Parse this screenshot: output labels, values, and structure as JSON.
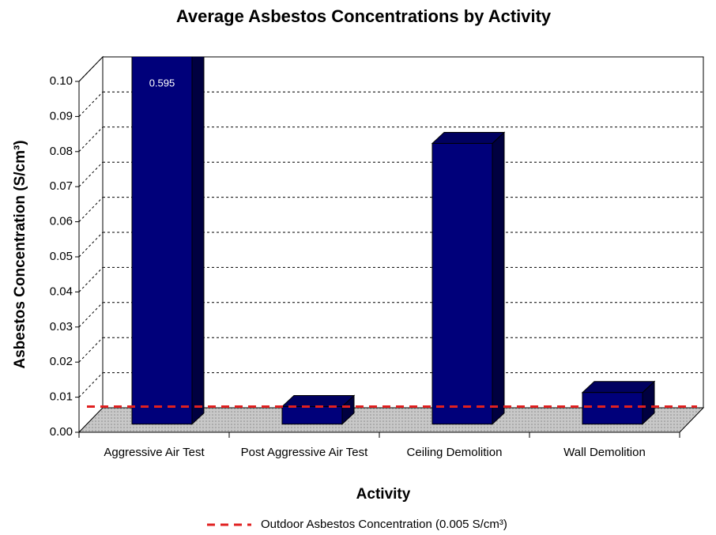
{
  "chart_data": {
    "type": "bar3d",
    "title": "Average Asbestos Concentrations by Activity",
    "x_label": "Activity",
    "y_label": "Asbestos Concentration (S/cm³)",
    "categories": [
      "Aggressive Air Test",
      "Post Aggressive Air Test",
      "Ceiling Demolition",
      "Wall Demolition"
    ],
    "values": [
      0.595,
      0.005,
      0.08,
      0.009
    ],
    "value_labels": [
      "0.595",
      null,
      null,
      null
    ],
    "color": "#00007a",
    "ylim": [
      0,
      0.1
    ],
    "yticks": [
      {
        "value": 0,
        "label": "0.00"
      },
      {
        "value": 0.01,
        "label": "0.01"
      },
      {
        "value": 0.02,
        "label": "0.02"
      },
      {
        "value": 0.03,
        "label": "0.03"
      },
      {
        "value": 0.04,
        "label": "0.04"
      },
      {
        "value": 0.05,
        "label": "0.05"
      },
      {
        "value": 0.06,
        "label": "0.06"
      },
      {
        "value": 0.07,
        "label": "0.07"
      },
      {
        "value": 0.08,
        "label": "0.08"
      },
      {
        "value": 0.09,
        "label": "0.09"
      },
      {
        "value": 0.1,
        "label": "0.10"
      }
    ],
    "grid": true,
    "reference_line": {
      "name": "Outdoor Asbestos Concentration (0.005 S/cm³)",
      "value": 0.005,
      "color": "#e02020"
    },
    "legend": "bottom"
  }
}
